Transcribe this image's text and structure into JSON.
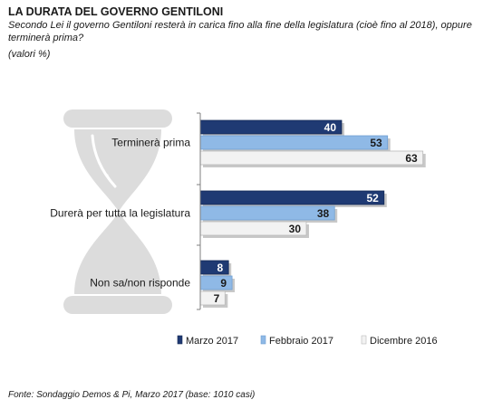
{
  "header": {
    "title": "La durata del Governo Gentiloni",
    "subtitle": "Secondo Lei il governo Gentiloni resterà in carica fino alla fine della legislatura (cioè fino al 2018), oppure terminerà prima?",
    "note": "(valori %)"
  },
  "footer": {
    "source": "Fonte: Sondaggio Demos & Pi, Marzo 2017 (base: 1010 casi)"
  },
  "colors": {
    "marzo_2017": "#1f3a73",
    "febbraio_2017": "#8fb9e6",
    "dicembre_2016": "#f2f2f2",
    "hourglass": "#dcdcdc"
  },
  "chart_data": {
    "type": "bar",
    "orientation": "horizontal",
    "title": "La durata del Governo Gentiloni",
    "categories": [
      "Terminerà prima",
      "Durerà per  tutta la legislatura",
      "Non sa/non risponde"
    ],
    "series": [
      {
        "name": "Marzo 2017",
        "values": [
          40,
          52,
          8
        ]
      },
      {
        "name": "Febbraio 2017",
        "values": [
          53,
          38,
          9
        ]
      },
      {
        "name": "Dicembre 2016",
        "values": [
          63,
          30,
          7
        ]
      }
    ],
    "xlim": [
      0,
      100
    ],
    "grid": false,
    "data_labels": true,
    "legend": "bottom",
    "decoration": "hourglass"
  }
}
